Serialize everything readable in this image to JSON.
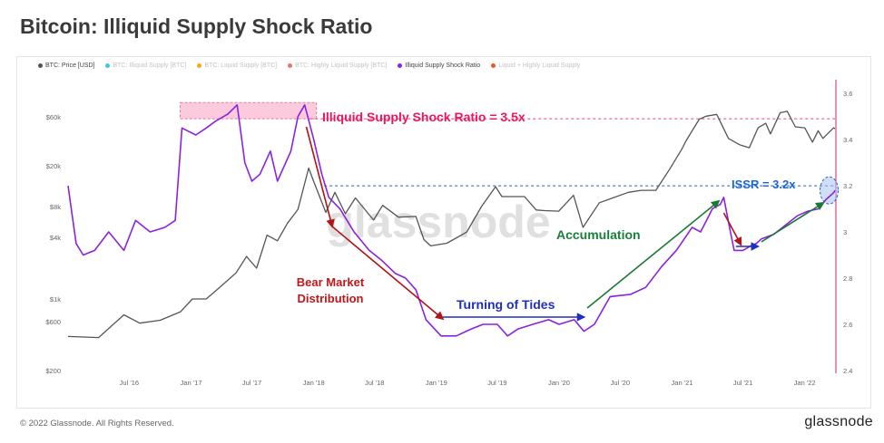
{
  "title": "Bitcoin: Illiquid Supply Shock Ratio",
  "footer": "© 2022 Glassnode. All Rights Reserved.",
  "brand": "glassnode",
  "watermark": "glassnode",
  "legend": [
    {
      "label": "BTC: Price [USD]",
      "color": "#555555",
      "active": true
    },
    {
      "label": "BTC: Illiquid Supply [BTC]",
      "color": "#3ec6e0",
      "active": false
    },
    {
      "label": "BTC: Liquid Supply [BTC]",
      "color": "#f5a623",
      "active": false
    },
    {
      "label": "BTC: Highly Liquid Supply [BTC]",
      "color": "#f07070",
      "active": false
    },
    {
      "label": "Illiquid Supply Shock Ratio",
      "color": "#8a22e0",
      "active": true
    },
    {
      "label": "Liquid + Highly Liquid Supply",
      "color": "#e8552a",
      "active": false
    }
  ],
  "chart_data": {
    "type": "line",
    "title": "Bitcoin: Illiquid Supply Shock Ratio",
    "x_range": [
      "2016-01-01",
      "2022-04-01"
    ],
    "x_ticks": [
      "Jul '16",
      "Jan '17",
      "Jul '17",
      "Jan '18",
      "Jul '18",
      "Jan '19",
      "Jul '19",
      "Jan '20",
      "Jul '20",
      "Jan '21",
      "Jul '21",
      "Jan '22"
    ],
    "y_left": {
      "scale": "log",
      "range": [
        200,
        100000
      ],
      "ticks": [
        "$60k",
        "$20k",
        "$8k",
        "$4k",
        "$1k",
        "$600",
        "$200"
      ]
    },
    "y_right": {
      "scale": "linear",
      "range": [
        2.4,
        3.62
      ],
      "ticks": [
        "3.6",
        "3.4",
        "3.2",
        "3",
        "2.8",
        "2.6",
        "2.4"
      ]
    },
    "series": [
      {
        "name": "BTC: Price [USD]",
        "axis": "left",
        "color": "#555555",
        "points": [
          [
            "2016-01-01",
            430
          ],
          [
            "2016-04-01",
            420
          ],
          [
            "2016-06-15",
            700
          ],
          [
            "2016-08-01",
            580
          ],
          [
            "2016-10-01",
            620
          ],
          [
            "2016-12-01",
            750
          ],
          [
            "2017-01-05",
            1000
          ],
          [
            "2017-02-15",
            1000
          ],
          [
            "2017-03-15",
            1200
          ],
          [
            "2017-05-15",
            1800
          ],
          [
            "2017-06-15",
            2600
          ],
          [
            "2017-07-15",
            2000
          ],
          [
            "2017-08-15",
            4200
          ],
          [
            "2017-09-15",
            3700
          ],
          [
            "2017-10-15",
            5500
          ],
          [
            "2017-11-15",
            7500
          ],
          [
            "2017-12-17",
            19000
          ],
          [
            "2018-01-01",
            14000
          ],
          [
            "2018-02-06",
            7000
          ],
          [
            "2018-03-05",
            11000
          ],
          [
            "2018-04-05",
            6800
          ],
          [
            "2018-05-05",
            9700
          ],
          [
            "2018-06-28",
            5900
          ],
          [
            "2018-07-25",
            8200
          ],
          [
            "2018-09-10",
            6300
          ],
          [
            "2018-11-01",
            6400
          ],
          [
            "2018-11-25",
            3800
          ],
          [
            "2018-12-15",
            3300
          ],
          [
            "2019-02-01",
            3500
          ],
          [
            "2019-04-01",
            4500
          ],
          [
            "2019-05-15",
            8000
          ],
          [
            "2019-06-26",
            12500
          ],
          [
            "2019-07-15",
            10000
          ],
          [
            "2019-09-20",
            10000
          ],
          [
            "2019-10-25",
            7400
          ],
          [
            "2019-11-20",
            7300
          ],
          [
            "2019-12-31",
            7200
          ],
          [
            "2020-02-13",
            10300
          ],
          [
            "2020-03-12",
            5000
          ],
          [
            "2020-04-30",
            8700
          ],
          [
            "2020-06-01",
            9500
          ],
          [
            "2020-07-25",
            11000
          ],
          [
            "2020-09-01",
            11500
          ],
          [
            "2020-10-15",
            11500
          ],
          [
            "2020-11-25",
            18500
          ],
          [
            "2020-12-31",
            29000
          ],
          [
            "2021-01-15",
            36000
          ],
          [
            "2021-02-21",
            57000
          ],
          [
            "2021-03-13",
            61000
          ],
          [
            "2021-04-14",
            63500
          ],
          [
            "2021-05-19",
            37000
          ],
          [
            "2021-06-22",
            32000
          ],
          [
            "2021-07-20",
            30000
          ],
          [
            "2021-08-15",
            47000
          ],
          [
            "2021-09-07",
            52000
          ],
          [
            "2021-09-21",
            41000
          ],
          [
            "2021-10-20",
            66000
          ],
          [
            "2021-11-10",
            68000
          ],
          [
            "2021-12-04",
            48000
          ],
          [
            "2022-01-01",
            47000
          ],
          [
            "2022-01-24",
            34000
          ],
          [
            "2022-02-10",
            44000
          ],
          [
            "2022-02-24",
            37000
          ],
          [
            "2022-03-28",
            47000
          ],
          [
            "2022-04-01",
            46000
          ]
        ]
      },
      {
        "name": "Illiquid Supply Shock Ratio",
        "axis": "right",
        "color": "#8a22e0",
        "points": [
          [
            "2016-01-01",
            3.2
          ],
          [
            "2016-01-25",
            2.95
          ],
          [
            "2016-02-15",
            2.9
          ],
          [
            "2016-03-20",
            2.92
          ],
          [
            "2016-05-01",
            3.0
          ],
          [
            "2016-06-15",
            2.92
          ],
          [
            "2016-07-20",
            3.05
          ],
          [
            "2016-09-01",
            3.0
          ],
          [
            "2016-10-15",
            3.02
          ],
          [
            "2016-11-15",
            3.05
          ],
          [
            "2016-12-05",
            3.45
          ],
          [
            "2017-01-15",
            3.42
          ],
          [
            "2017-02-15",
            3.45
          ],
          [
            "2017-03-15",
            3.48
          ],
          [
            "2017-04-20",
            3.51
          ],
          [
            "2017-05-18",
            3.55
          ],
          [
            "2017-06-10",
            3.3
          ],
          [
            "2017-07-01",
            3.22
          ],
          [
            "2017-07-25",
            3.25
          ],
          [
            "2017-08-25",
            3.35
          ],
          [
            "2017-09-15",
            3.22
          ],
          [
            "2017-10-25",
            3.35
          ],
          [
            "2017-11-15",
            3.5
          ],
          [
            "2017-12-05",
            3.55
          ],
          [
            "2018-01-01",
            3.4
          ],
          [
            "2018-01-25",
            3.25
          ],
          [
            "2018-02-15",
            3.15
          ],
          [
            "2018-03-20",
            3.1
          ],
          [
            "2018-05-01",
            3.0
          ],
          [
            "2018-06-15",
            2.92
          ],
          [
            "2018-07-20",
            2.88
          ],
          [
            "2018-09-01",
            2.82
          ],
          [
            "2018-10-01",
            2.8
          ],
          [
            "2018-11-01",
            2.75
          ],
          [
            "2018-12-01",
            2.62
          ],
          [
            "2019-01-15",
            2.55
          ],
          [
            "2019-03-01",
            2.55
          ],
          [
            "2019-04-15",
            2.58
          ],
          [
            "2019-05-20",
            2.6
          ],
          [
            "2019-07-01",
            2.6
          ],
          [
            "2019-08-01",
            2.55
          ],
          [
            "2019-09-01",
            2.58
          ],
          [
            "2019-10-15",
            2.6
          ],
          [
            "2019-12-01",
            2.62
          ],
          [
            "2020-01-01",
            2.6
          ],
          [
            "2020-02-15",
            2.62
          ],
          [
            "2020-03-15",
            2.57
          ],
          [
            "2020-04-15",
            2.6
          ],
          [
            "2020-06-01",
            2.72
          ],
          [
            "2020-08-01",
            2.73
          ],
          [
            "2020-09-15",
            2.76
          ],
          [
            "2020-11-01",
            2.85
          ],
          [
            "2020-12-15",
            2.92
          ],
          [
            "2021-01-31",
            3.02
          ],
          [
            "2021-02-25",
            3.0
          ],
          [
            "2021-03-15",
            3.05
          ],
          [
            "2021-04-01",
            3.1
          ],
          [
            "2021-04-25",
            3.12
          ],
          [
            "2021-05-05",
            3.15
          ],
          [
            "2021-05-25",
            3.0
          ],
          [
            "2021-06-05",
            2.92
          ],
          [
            "2021-07-01",
            2.92
          ],
          [
            "2021-07-25",
            2.94
          ],
          [
            "2021-08-10",
            2.95
          ],
          [
            "2021-08-25",
            2.97
          ],
          [
            "2021-10-01",
            2.99
          ],
          [
            "2021-11-05",
            3.03
          ],
          [
            "2021-12-10",
            3.07
          ],
          [
            "2022-01-10",
            3.09
          ],
          [
            "2022-02-10",
            3.1
          ],
          [
            "2022-03-05",
            3.14
          ],
          [
            "2022-03-28",
            3.17
          ],
          [
            "2022-04-01",
            3.18
          ]
        ]
      }
    ],
    "annotations": [
      {
        "text": "Illiquid Supply Shock Ratio = 3.5x",
        "color": "#e8185a"
      },
      {
        "text": "ISSR = 3.2x",
        "color": "#1a66d6"
      },
      {
        "text": "Bear Market",
        "color": "#c0161a"
      },
      {
        "text": "Distribution",
        "color": "#c0161a"
      },
      {
        "text": "Turning of Tides",
        "color": "#1f2fbf"
      },
      {
        "text": "Accumulation",
        "color": "#18803a"
      }
    ],
    "grid": false,
    "legend_position": "top-left"
  }
}
